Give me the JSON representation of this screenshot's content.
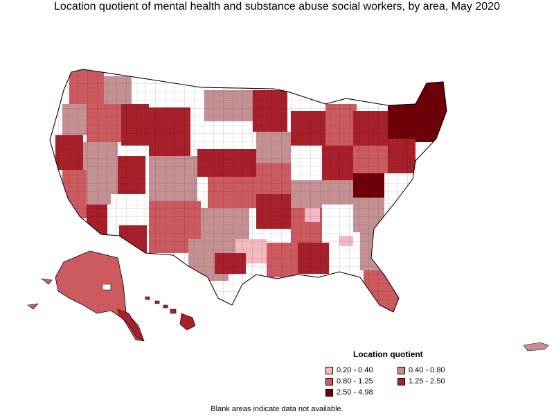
{
  "title": "Location quotient of mental health and substance abuse social workers, by area, May 2020",
  "legend": {
    "title": "Location quotient",
    "items": [
      {
        "label": "0.20 - 0.40",
        "color": "#f4b8c0"
      },
      {
        "label": "0.40 - 0.80",
        "color": "#c49094"
      },
      {
        "label": "0.80 - 1.25",
        "color": "#cc5a5e"
      },
      {
        "label": "1.25 - 2.50",
        "color": "#a8202a"
      },
      {
        "label": "2.50 - 4.98",
        "color": "#6e0008"
      }
    ]
  },
  "footnote": "Blank areas indicate data not available.",
  "colors": {
    "no_data": "#ffffff",
    "border": "#000000"
  }
}
